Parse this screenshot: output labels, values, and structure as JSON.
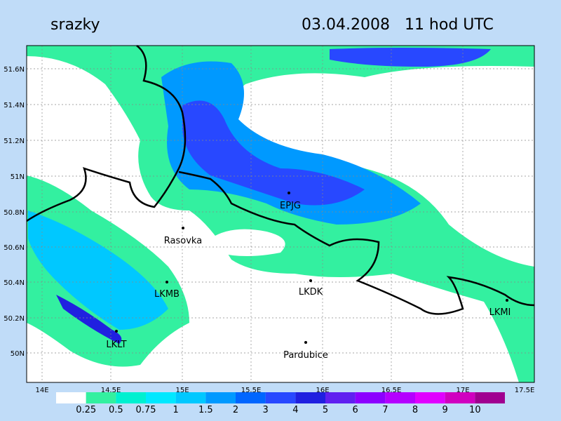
{
  "header": {
    "title": "srazky",
    "datetime": "03.04.2008   11 hod UTC"
  },
  "lat_labels": [
    "51.6N",
    "51.4N",
    "51.2N",
    "51N",
    "50.8N",
    "50.6N",
    "50.4N",
    "50.2N",
    "50N"
  ],
  "lon_labels": [
    "14E",
    "14.5E",
    "15E",
    "15.5E",
    "16E",
    "16.5E",
    "17E",
    "17.5E"
  ],
  "stations": [
    "EPJG",
    "Rasovka",
    "LKMB",
    "LKDK",
    "LKLT",
    "Pardubice",
    "LKMI"
  ],
  "legend": {
    "labels": [
      "0.25",
      "0.5",
      "0.75",
      "1",
      "1.5",
      "2",
      "3",
      "4",
      "5",
      "6",
      "7",
      "8",
      "9",
      "10"
    ],
    "colors": [
      "#ffffff",
      "#33f0a0",
      "#00f0d0",
      "#00e8ff",
      "#00c8ff",
      "#0099ff",
      "#0066ff",
      "#2848ff",
      "#2020e0",
      "#6020f0",
      "#8c00ff",
      "#b400ff",
      "#e000ff",
      "#d000c0",
      "#a00090"
    ]
  }
}
